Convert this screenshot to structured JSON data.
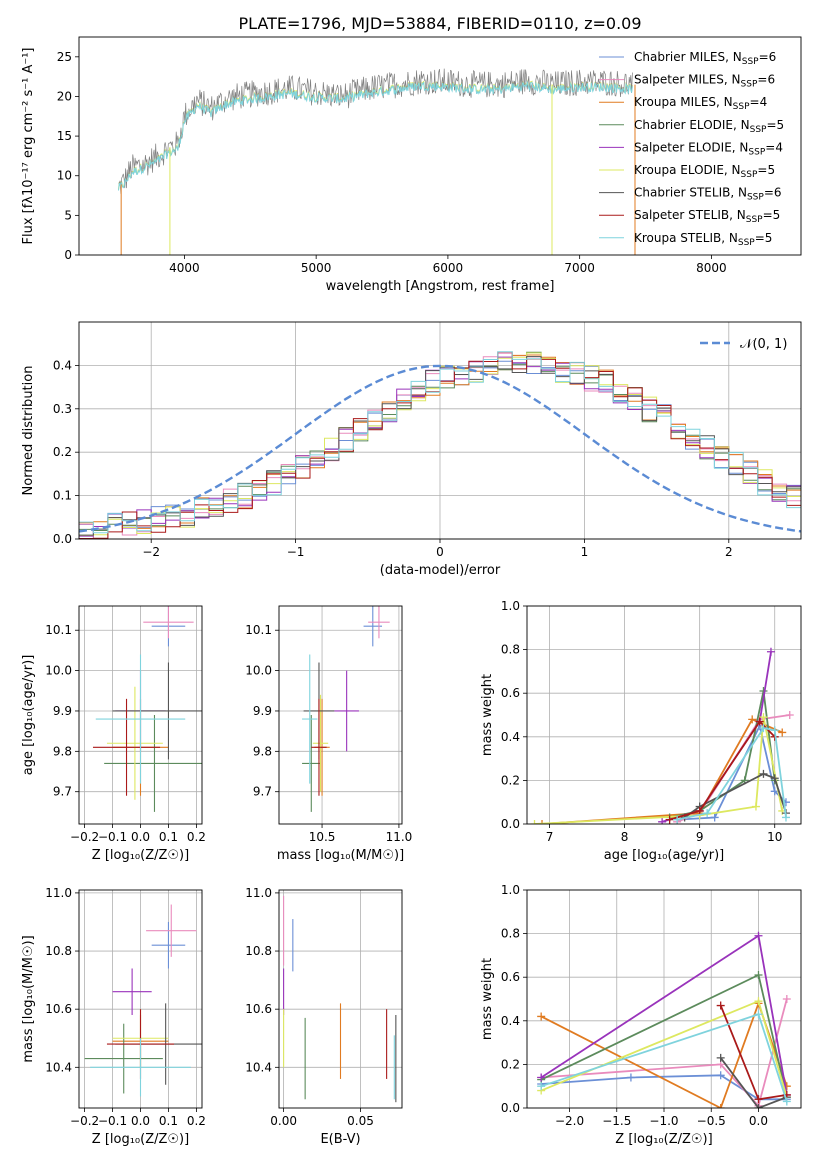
{
  "figure": {
    "title": "PLATE=1796, MJD=53884, FIBERID=0110, z=0.09"
  },
  "colors": {
    "Chabrier MILES": "#6b8fd6",
    "Salpeter MILES": "#e98bbd",
    "Kroupa MILES": "#e07b21",
    "Chabrier ELODIE": "#5c8b5c",
    "Salpeter ELODIE": "#9933bb",
    "Kroupa ELODIE": "#dde860",
    "Chabrier STELIB": "#555555",
    "Salpeter STELIB": "#aa1a1a",
    "Kroupa STELIB": "#7fd3dd",
    "data": "#808080",
    "gaussian": "#5b8bd4",
    "grid": "#b0b0b0"
  },
  "chart_data": [
    {
      "id": "spectrum",
      "type": "line",
      "xlabel": "wavelength [Angstrom, rest frame]",
      "ylabel": "Flux [fλ10⁻¹⁷ erg cm⁻² s⁻¹ A⁻¹]",
      "xlim": [
        3200,
        8680
      ],
      "ylim": [
        0,
        27.5
      ],
      "xticks": [
        4000,
        5000,
        6000,
        7000,
        8000
      ],
      "yticks": [
        0,
        5,
        10,
        15,
        20,
        25
      ],
      "grid": false,
      "legend_position": "right",
      "x": [
        3500,
        3550,
        3600,
        3700,
        3800,
        3880,
        3950,
        4000,
        4100,
        4200,
        4300,
        4400,
        4600,
        4800,
        5000,
        5200,
        5400,
        5600,
        5800,
        6000,
        6200,
        6400,
        6600,
        6800,
        7000,
        7200,
        7400
      ],
      "data_y": [
        8.5,
        9.5,
        11,
        11.5,
        12.5,
        13.5,
        14,
        17.5,
        19.5,
        18.5,
        19.5,
        20,
        20.5,
        21,
        20.5,
        20,
        21,
        21.5,
        22,
        21.8,
        21.5,
        21.5,
        22,
        21.5,
        21.8,
        21.8,
        21.5
      ],
      "model_y": [
        8.5,
        9.2,
        10.5,
        11.2,
        12,
        13,
        13.5,
        17,
        19,
        18,
        19,
        19.5,
        20,
        20.5,
        20,
        19.8,
        20.5,
        21,
        21.5,
        21.3,
        21,
        21,
        21.5,
        21,
        21.3,
        21.3,
        21
      ]
    },
    {
      "id": "residuals",
      "type": "bar",
      "xlabel": "(data-model)/error",
      "ylabel": "Normed distribution",
      "xlim": [
        -2.5,
        2.5
      ],
      "ylim": [
        0,
        0.5
      ],
      "xticks": [
        -2,
        -1,
        0,
        1,
        2
      ],
      "yticks": [
        0.0,
        0.1,
        0.2,
        0.3,
        0.4
      ],
      "grid": true,
      "legend_position": "top-right",
      "legend_label": "𝒩(0, 1)",
      "bin_width": 0.1,
      "histogram_envelope": [
        0.02,
        0.025,
        0.03,
        0.035,
        0.04,
        0.045,
        0.05,
        0.055,
        0.065,
        0.075,
        0.085,
        0.1,
        0.11,
        0.13,
        0.15,
        0.17,
        0.19,
        0.21,
        0.23,
        0.255,
        0.28,
        0.3,
        0.32,
        0.34,
        0.36,
        0.37,
        0.38,
        0.39,
        0.4,
        0.405,
        0.41,
        0.405,
        0.4,
        0.39,
        0.38,
        0.37,
        0.36,
        0.34,
        0.32,
        0.3,
        0.28,
        0.255,
        0.23,
        0.21,
        0.19,
        0.17,
        0.15,
        0.13,
        0.11,
        0.1
      ]
    },
    {
      "id": "age-vs-Z",
      "type": "scatter",
      "xlabel": "Z [log₁₀(Z/Z☉)]",
      "ylabel": "age  [log₁₀(age/yr)]",
      "xlim": [
        -0.22,
        0.22
      ],
      "ylim": [
        9.62,
        10.16
      ],
      "xticks": [
        -0.2,
        -0.1,
        0.0,
        0.1,
        0.2
      ],
      "yticks": [
        9.7,
        9.8,
        9.9,
        10.0,
        10.1
      ],
      "grid": true,
      "points": [
        {
          "model": "Chabrier MILES",
          "x": 0.1,
          "y": 10.11,
          "xerr": 0.06,
          "yerr": 0.05
        },
        {
          "model": "Salpeter MILES",
          "x": 0.1,
          "y": 10.12,
          "xerr": 0.09,
          "yerr": 0.04
        },
        {
          "model": "Kroupa MILES",
          "x": 0.0,
          "y": 9.81,
          "xerr": 0.1,
          "yerr": 0.12
        },
        {
          "model": "Chabrier ELODIE",
          "x": 0.05,
          "y": 9.77,
          "xerr": 0.18,
          "yerr": 0.12
        },
        {
          "model": "Salpeter ELODIE",
          "x": 0.0,
          "y": 9.9,
          "xerr": 0.09,
          "yerr": 0.1
        },
        {
          "model": "Kroupa ELODIE",
          "x": -0.02,
          "y": 9.82,
          "xerr": 0.1,
          "yerr": 0.14
        },
        {
          "model": "Chabrier STELIB",
          "x": 0.1,
          "y": 9.9,
          "xerr": 0.2,
          "yerr": 0.12
        },
        {
          "model": "Salpeter STELIB",
          "x": -0.05,
          "y": 9.81,
          "xerr": 0.12,
          "yerr": 0.12
        },
        {
          "model": "Kroupa STELIB",
          "x": 0.0,
          "y": 9.88,
          "xerr": 0.16,
          "yerr": 0.16
        }
      ]
    },
    {
      "id": "age-vs-mass",
      "type": "scatter",
      "xlabel": "mass [log₁₀(M/M☉)]",
      "ylabel": "",
      "xlim": [
        10.22,
        11.02
      ],
      "ylim": [
        9.62,
        10.16
      ],
      "xticks": [
        10.5,
        11.0
      ],
      "yticks": [
        9.7,
        9.8,
        9.9,
        10.0,
        10.1
      ],
      "grid": true,
      "points": [
        {
          "model": "Chabrier MILES",
          "x": 10.83,
          "y": 10.11,
          "xerr": 0.06,
          "yerr": 0.05
        },
        {
          "model": "Salpeter MILES",
          "x": 10.87,
          "y": 10.12,
          "xerr": 0.07,
          "yerr": 0.04
        },
        {
          "model": "Kroupa MILES",
          "x": 10.5,
          "y": 9.81,
          "xerr": 0.05,
          "yerr": 0.12
        },
        {
          "model": "Chabrier ELODIE",
          "x": 10.43,
          "y": 9.77,
          "xerr": 0.06,
          "yerr": 0.12
        },
        {
          "model": "Salpeter ELODIE",
          "x": 10.66,
          "y": 9.9,
          "xerr": 0.08,
          "yerr": 0.1
        },
        {
          "model": "Kroupa ELODIE",
          "x": 10.49,
          "y": 9.82,
          "xerr": 0.05,
          "yerr": 0.12
        },
        {
          "model": "Chabrier STELIB",
          "x": 10.48,
          "y": 9.9,
          "xerr": 0.1,
          "yerr": 0.12
        },
        {
          "model": "Salpeter STELIB",
          "x": 10.48,
          "y": 9.81,
          "xerr": 0.05,
          "yerr": 0.12
        },
        {
          "model": "Kroupa STELIB",
          "x": 10.42,
          "y": 9.88,
          "xerr": 0.05,
          "yerr": 0.16
        }
      ]
    },
    {
      "id": "weight-vs-age",
      "type": "line",
      "xlabel": "age  [log₁₀(age/yr)]",
      "ylabel": "mass weight",
      "xlim": [
        6.7,
        10.35
      ],
      "ylim": [
        0,
        1.0
      ],
      "xticks": [
        7,
        8,
        9,
        10
      ],
      "yticks": [
        0.0,
        0.2,
        0.4,
        0.6,
        0.8,
        1.0
      ],
      "grid": true,
      "series": [
        {
          "model": "Chabrier MILES",
          "x": [
            8.7,
            9.2,
            9.8,
            10.0,
            10.15
          ],
          "y": [
            0.02,
            0.03,
            0.45,
            0.15,
            0.1
          ]
        },
        {
          "model": "Salpeter MILES",
          "x": [
            8.7,
            9.0,
            9.8,
            10.2
          ],
          "y": [
            0.01,
            0.05,
            0.48,
            0.5
          ]
        },
        {
          "model": "Kroupa MILES",
          "x": [
            6.9,
            9.0,
            9.7,
            10.1
          ],
          "y": [
            0.0,
            0.05,
            0.48,
            0.42
          ]
        },
        {
          "model": "Chabrier ELODIE",
          "x": [
            8.6,
            9.0,
            9.6,
            9.85,
            10.0
          ],
          "y": [
            0.03,
            0.06,
            0.2,
            0.61,
            0.2
          ]
        },
        {
          "model": "Salpeter ELODIE",
          "x": [
            8.5,
            9.0,
            9.8,
            9.95
          ],
          "y": [
            0.01,
            0.06,
            0.47,
            0.79
          ]
        },
        {
          "model": "Kroupa ELODIE",
          "x": [
            6.8,
            9.0,
            9.75,
            9.85,
            10.1
          ],
          "y": [
            0.0,
            0.04,
            0.08,
            0.49,
            0.06
          ]
        },
        {
          "model": "Chabrier STELIB",
          "x": [
            8.8,
            9.0,
            9.85,
            10.0,
            10.15
          ],
          "y": [
            0.03,
            0.08,
            0.23,
            0.21,
            0.05
          ]
        },
        {
          "model": "Salpeter STELIB",
          "x": [
            8.6,
            9.0,
            9.8,
            10.0
          ],
          "y": [
            0.02,
            0.06,
            0.47,
            0.4
          ]
        },
        {
          "model": "Kroupa STELIB",
          "x": [
            8.7,
            9.1,
            9.85,
            10.0,
            10.15
          ],
          "y": [
            0.02,
            0.05,
            0.44,
            0.43,
            0.03
          ]
        }
      ]
    },
    {
      "id": "mass-vs-Z",
      "type": "scatter",
      "xlabel": "Z [log₁₀(Z/Z☉)]",
      "ylabel": "mass [log₁₀(M/M☉)]",
      "xlim": [
        -0.22,
        0.22
      ],
      "ylim": [
        10.26,
        11.01
      ],
      "xticks": [
        -0.2,
        -0.1,
        0.0,
        0.1,
        0.2
      ],
      "yticks": [
        10.4,
        10.6,
        10.8,
        11.0
      ],
      "grid": true,
      "points": [
        {
          "model": "Chabrier MILES",
          "x": 0.1,
          "y": 10.82,
          "xerr": 0.06,
          "yerr": 0.08
        },
        {
          "model": "Salpeter MILES",
          "x": 0.11,
          "y": 10.87,
          "xerr": 0.09,
          "yerr": 0.09
        },
        {
          "model": "Kroupa MILES",
          "x": 0.0,
          "y": 10.49,
          "xerr": 0.1,
          "yerr": 0.09
        },
        {
          "model": "Chabrier ELODIE",
          "x": -0.06,
          "y": 10.43,
          "xerr": 0.14,
          "yerr": 0.12
        },
        {
          "model": "Salpeter ELODIE",
          "x": -0.03,
          "y": 10.66,
          "xerr": 0.07,
          "yerr": 0.08
        },
        {
          "model": "Kroupa ELODIE",
          "x": 0.0,
          "y": 10.5,
          "xerr": 0.1,
          "yerr": 0.1
        },
        {
          "model": "Chabrier STELIB",
          "x": 0.09,
          "y": 10.48,
          "xerr": 0.18,
          "yerr": 0.14
        },
        {
          "model": "Salpeter STELIB",
          "x": 0.0,
          "y": 10.48,
          "xerr": 0.12,
          "yerr": 0.12
        },
        {
          "model": "Kroupa STELIB",
          "x": 0.0,
          "y": 10.4,
          "xerr": 0.18,
          "yerr": 0.1
        }
      ]
    },
    {
      "id": "mass-vs-EBV",
      "type": "scatter",
      "xlabel": "E(B-V)",
      "ylabel": "",
      "xlim": [
        -0.003,
        0.077
      ],
      "ylim": [
        10.26,
        11.01
      ],
      "xticks": [
        0.0,
        0.05
      ],
      "yticks": [
        10.4,
        10.6,
        10.8,
        11.0
      ],
      "grid": true,
      "points": [
        {
          "model": "Chabrier MILES",
          "x": 0.006,
          "y": 10.82,
          "xerr": 0,
          "yerr": 0.09
        },
        {
          "model": "Salpeter MILES",
          "x": 0.0,
          "y": 10.87,
          "xerr": 0,
          "yerr": 0.12
        },
        {
          "model": "Kroupa MILES",
          "x": 0.037,
          "y": 10.49,
          "xerr": 0,
          "yerr": 0.13
        },
        {
          "model": "Chabrier ELODIE",
          "x": 0.014,
          "y": 10.43,
          "xerr": 0,
          "yerr": 0.14
        },
        {
          "model": "Salpeter ELODIE",
          "x": 0.0,
          "y": 10.66,
          "xerr": 0,
          "yerr": 0.08
        },
        {
          "model": "Kroupa ELODIE",
          "x": 0.0,
          "y": 10.5,
          "xerr": 0,
          "yerr": 0.1
        },
        {
          "model": "Chabrier STELIB",
          "x": 0.073,
          "y": 10.43,
          "xerr": 0,
          "yerr": 0.15
        },
        {
          "model": "Salpeter STELIB",
          "x": 0.067,
          "y": 10.48,
          "xerr": 0,
          "yerr": 0.12
        },
        {
          "model": "Kroupa STELIB",
          "x": 0.072,
          "y": 10.4,
          "xerr": 0,
          "yerr": 0.11
        }
      ]
    },
    {
      "id": "weight-vs-Z",
      "type": "line",
      "xlabel": "Z [log₁₀(Z/Z☉)]",
      "ylabel": "mass weight",
      "xlim": [
        -2.45,
        0.45
      ],
      "ylim": [
        0,
        1.0
      ],
      "xticks": [
        -2.0,
        -1.5,
        -1.0,
        -0.5,
        0.0
      ],
      "yticks": [
        0.0,
        0.2,
        0.4,
        0.6,
        0.8,
        1.0
      ],
      "grid": true,
      "series": [
        {
          "model": "Chabrier MILES",
          "x": [
            -2.3,
            -1.35,
            -0.4,
            0.0,
            0.3
          ],
          "y": [
            0.11,
            0.14,
            0.15,
            0.04,
            0.04
          ]
        },
        {
          "model": "Salpeter MILES",
          "x": [
            -2.3,
            -0.4,
            0.0,
            0.3
          ],
          "y": [
            0.14,
            0.2,
            0.01,
            0.5
          ]
        },
        {
          "model": "Kroupa MILES",
          "x": [
            -2.3,
            -0.4,
            0.0,
            0.3
          ],
          "y": [
            0.42,
            0.0,
            0.48,
            0.1
          ]
        },
        {
          "model": "Chabrier ELODIE",
          "x": [
            -2.3,
            0.0,
            0.3
          ],
          "y": [
            0.13,
            0.61,
            0.05
          ]
        },
        {
          "model": "Salpeter ELODIE",
          "x": [
            -2.3,
            0.0,
            0.3
          ],
          "y": [
            0.14,
            0.79,
            0.06
          ]
        },
        {
          "model": "Kroupa ELODIE",
          "x": [
            -2.3,
            0.0,
            0.3
          ],
          "y": [
            0.08,
            0.49,
            0.05
          ]
        },
        {
          "model": "Chabrier STELIB",
          "x": [
            -0.4,
            0.0,
            0.3
          ],
          "y": [
            0.23,
            0.0,
            0.05
          ]
        },
        {
          "model": "Salpeter STELIB",
          "x": [
            -0.4,
            0.0,
            0.3
          ],
          "y": [
            0.47,
            0.04,
            0.06
          ]
        },
        {
          "model": "Kroupa STELIB",
          "x": [
            -2.3,
            0.0,
            0.3
          ],
          "y": [
            0.1,
            0.43,
            0.03
          ]
        }
      ]
    }
  ],
  "legend": [
    {
      "label": "Chabrier MILES, N",
      "n": "6"
    },
    {
      "label": "Salpeter MILES, N",
      "n": "6"
    },
    {
      "label": "Kroupa MILES, N",
      "n": "4"
    },
    {
      "label": "Chabrier ELODIE, N",
      "n": "5"
    },
    {
      "label": "Salpeter ELODIE, N",
      "n": "4"
    },
    {
      "label": "Kroupa ELODIE, N",
      "n": "5"
    },
    {
      "label": "Chabrier STELIB, N",
      "n": "6"
    },
    {
      "label": "Salpeter STELIB, N",
      "n": "5"
    },
    {
      "label": "Kroupa STELIB, N",
      "n": "5"
    }
  ]
}
